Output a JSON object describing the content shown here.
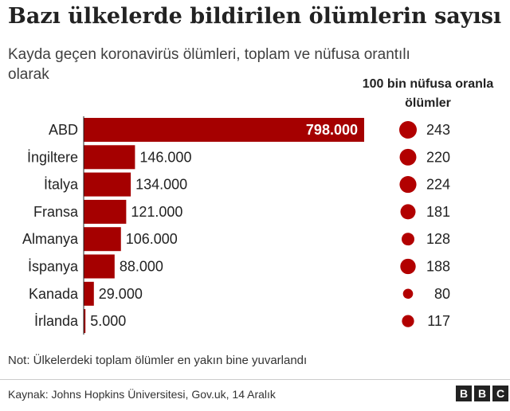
{
  "chart_data": {
    "type": "bar",
    "orientation": "horizontal",
    "title": "Bazı ülkelerde bildirilen ölümlerin sayısı",
    "subtitle": "Kayda geçen koronavirüs ölümleri, toplam ve nüfusa orantılı olarak",
    "categories": [
      "ABD",
      "İngiltere",
      "İtalya",
      "Fransa",
      "Almanya",
      "İspanya",
      "Kanada",
      "İrlanda"
    ],
    "values": [
      798000,
      146000,
      134000,
      121000,
      106000,
      88000,
      29000,
      5000
    ],
    "value_labels": [
      "798.000",
      "146.000",
      "134.000",
      "121.000",
      "106.000",
      "88.000",
      "29.000",
      "5.000"
    ],
    "rate_header": "100 bin nüfusa oranla ölümler",
    "rates": [
      243,
      220,
      224,
      181,
      128,
      188,
      80,
      117
    ],
    "bar_color": "#a50000",
    "dot_color": "#b20000"
  },
  "note": "Not: Ülkelerdeki toplam ölümler en yakın bine yuvarlandı",
  "source": "Kaynak: Johns Hopkins Üniversitesi, Gov.uk, 14 Aralık",
  "logo_letters": [
    "B",
    "B",
    "C"
  ]
}
